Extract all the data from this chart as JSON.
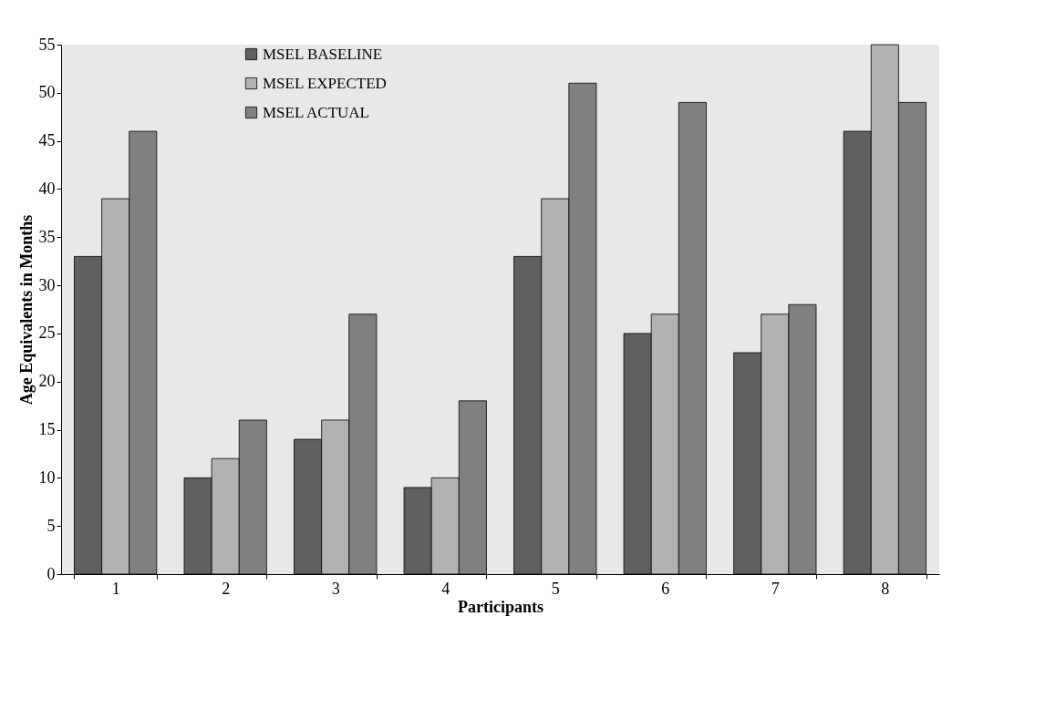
{
  "chart_data": {
    "type": "bar",
    "xlabel": "Participants",
    "ylabel": "Age Equivalents in Months",
    "categories": [
      "1",
      "2",
      "3",
      "4",
      "5",
      "6",
      "7",
      "8"
    ],
    "series": [
      {
        "name": "MSEL BASELINE",
        "color": "#606060",
        "values": [
          33,
          10,
          14,
          9,
          33,
          25,
          23,
          46
        ]
      },
      {
        "name": "MSEL EXPECTED",
        "color": "#b2b2b2",
        "values": [
          39,
          12,
          16,
          10,
          39,
          27,
          27,
          55
        ]
      },
      {
        "name": "MSEL ACTUAL",
        "color": "#808080",
        "values": [
          46,
          16,
          27,
          18,
          51,
          49,
          28,
          49
        ]
      }
    ],
    "ylim": [
      0,
      55
    ],
    "yticks": [
      0,
      5,
      10,
      15,
      20,
      25,
      30,
      35,
      40,
      45,
      50,
      55
    ],
    "grid": false,
    "legend": "top left"
  }
}
